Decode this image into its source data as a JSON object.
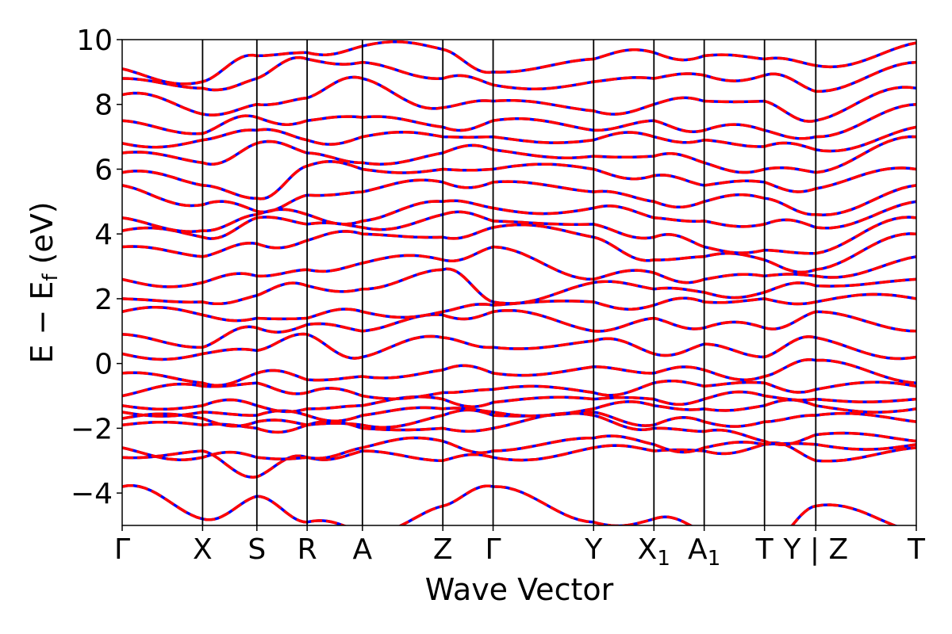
{
  "chart_data": {
    "type": "line",
    "xlabel": "Wave Vector",
    "ylabel": "E − E_f (eV)",
    "ylabel_parts": {
      "main": "E − E",
      "sub": "f",
      "unit": " (eV)"
    },
    "ylim": [
      -5,
      10
    ],
    "yticks": [
      -4,
      -2,
      0,
      2,
      4,
      6,
      8,
      10
    ],
    "ytick_labels": [
      "−4",
      "−2",
      "0",
      "2",
      "4",
      "6",
      "8",
      "10"
    ],
    "grid": false,
    "kpoints": [
      {
        "label": "Γ",
        "main": "Γ",
        "sub": "",
        "x": 0.0
      },
      {
        "label": "X",
        "main": "X",
        "sub": "",
        "x": 0.8
      },
      {
        "label": "S",
        "main": "S",
        "sub": "",
        "x": 1.34
      },
      {
        "label": "R",
        "main": "R",
        "sub": "",
        "x": 1.84
      },
      {
        "label": "A",
        "main": "A",
        "sub": "",
        "x": 2.39
      },
      {
        "label": "Z",
        "main": "Z",
        "sub": "",
        "x": 3.19
      },
      {
        "label": "Γ",
        "main": "Γ",
        "sub": "",
        "x": 3.69
      },
      {
        "label": "Y",
        "main": "Y",
        "sub": "",
        "x": 4.69
      },
      {
        "label": "X1",
        "main": "X",
        "sub": "1",
        "x": 5.29
      },
      {
        "label": "A1",
        "main": "A",
        "sub": "1",
        "x": 5.79
      },
      {
        "label": "T",
        "main": "T",
        "sub": "",
        "x": 6.39
      },
      {
        "label": "Y | Z",
        "main": "Y | Z",
        "sub": "",
        "x": 6.9
      },
      {
        "label": "T",
        "main": "T",
        "sub": "",
        "x": 7.9
      }
    ],
    "xlim": [
      0,
      7.9
    ],
    "series": [
      {
        "style": "solid",
        "color": "#0000ff"
      },
      {
        "style": "dashed",
        "color": "#ff0000"
      }
    ],
    "bands_at_kpoints": [
      [
        -3.8,
        -4.8,
        -4.1,
        -4.9,
        -5.2,
        -4.4,
        -3.8,
        -4.9,
        -4.8,
        -5.2,
        -5.6,
        -4.4,
        -5.2
      ],
      [
        -2.9,
        -2.7,
        -3.5,
        -2.9,
        -2.7,
        -3.0,
        -2.9,
        -2.6,
        -2.7,
        -2.7,
        -2.5,
        -3.0,
        -2.6
      ],
      [
        -2.6,
        -2.9,
        -2.9,
        -2.9,
        -2.6,
        -2.4,
        -2.7,
        -2.3,
        -2.5,
        -2.6,
        -2.5,
        -2.5,
        -2.5
      ],
      [
        -1.9,
        -1.9,
        -2.0,
        -1.9,
        -2.0,
        -2.0,
        -2.0,
        -1.6,
        -2.0,
        -2.1,
        -2.4,
        -2.2,
        -2.4
      ],
      [
        -1.7,
        -1.7,
        -1.8,
        -1.9,
        -1.9,
        -1.6,
        -1.6,
        -1.5,
        -1.9,
        -1.8,
        -1.8,
        -1.6,
        -1.8
      ],
      [
        -1.5,
        -1.5,
        -1.6,
        -1.6,
        -1.6,
        -1.4,
        -1.5,
        -1.4,
        -1.3,
        -1.4,
        -1.3,
        -1.3,
        -1.4
      ],
      [
        -1.3,
        -1.3,
        -1.3,
        -1.4,
        -1.3,
        -1.1,
        -1.2,
        -1.1,
        -1.1,
        -1.1,
        -1.0,
        -1.1,
        -1.1
      ],
      [
        -1.0,
        -0.7,
        -0.6,
        -0.9,
        -1.0,
        -0.9,
        -0.8,
        -0.9,
        -0.6,
        -0.7,
        -0.6,
        -0.8,
        -0.7
      ],
      [
        -0.3,
        -0.6,
        -0.3,
        -0.5,
        -0.4,
        -0.2,
        -0.3,
        -0.1,
        -0.3,
        -0.2,
        -0.4,
        0.1,
        -0.6
      ],
      [
        0.3,
        0.3,
        0.4,
        0.9,
        0.2,
        0.8,
        0.5,
        0.7,
        0.3,
        0.6,
        0.2,
        0.8,
        0.2
      ],
      [
        0.9,
        0.5,
        1.1,
        1.2,
        1.0,
        1.5,
        1.6,
        1.0,
        1.4,
        1.1,
        1.1,
        1.6,
        1.0
      ],
      [
        1.6,
        1.5,
        1.4,
        1.4,
        1.6,
        1.6,
        1.8,
        1.9,
        1.8,
        1.9,
        2.0,
        1.9,
        2.0
      ],
      [
        2.0,
        1.9,
        2.1,
        2.4,
        2.3,
        2.9,
        1.9,
        2.5,
        2.3,
        2.2,
        2.2,
        2.4,
        2.6
      ],
      [
        2.6,
        2.5,
        2.7,
        2.9,
        3.1,
        3.2,
        3.6,
        2.6,
        2.8,
        2.6,
        2.7,
        2.7,
        3.3
      ],
      [
        3.6,
        3.3,
        3.7,
        3.8,
        4.0,
        3.9,
        4.2,
        3.9,
        3.2,
        3.3,
        3.2,
        2.9,
        4.0
      ],
      [
        4.1,
        3.9,
        4.5,
        4.3,
        4.2,
        4.6,
        4.4,
        4.3,
        3.9,
        3.6,
        3.5,
        3.4,
        4.5
      ],
      [
        4.5,
        4.1,
        4.6,
        4.6,
        4.4,
        5.0,
        4.8,
        4.8,
        4.5,
        4.4,
        4.3,
        4.2,
        5.0
      ],
      [
        5.5,
        4.9,
        4.7,
        5.2,
        5.3,
        5.6,
        5.6,
        5.3,
        5.0,
        5.0,
        5.1,
        4.6,
        5.5
      ],
      [
        5.9,
        5.5,
        5.1,
        6.1,
        6.0,
        6.0,
        6.0,
        6.0,
        5.8,
        5.5,
        5.6,
        5.4,
        6.0
      ],
      [
        6.5,
        6.2,
        6.8,
        6.5,
        6.2,
        6.5,
        6.6,
        6.4,
        6.4,
        6.2,
        6.0,
        5.9,
        7.0
      ],
      [
        6.8,
        6.9,
        7.2,
        6.9,
        7.0,
        7.0,
        7.0,
        6.9,
        7.0,
        6.9,
        6.7,
        6.6,
        7.3
      ],
      [
        7.5,
        7.1,
        7.6,
        7.5,
        7.6,
        7.3,
        7.5,
        7.2,
        7.5,
        7.2,
        7.2,
        7.0,
        8.0
      ],
      [
        8.3,
        7.7,
        8.0,
        8.2,
        8.8,
        7.9,
        8.1,
        7.8,
        8.0,
        8.1,
        8.1,
        7.5,
        8.5
      ],
      [
        8.8,
        8.5,
        8.8,
        9.4,
        9.3,
        8.8,
        8.6,
        8.7,
        8.8,
        8.9,
        8.9,
        8.4,
        9.3
      ],
      [
        9.1,
        8.7,
        9.5,
        9.6,
        9.8,
        9.7,
        9.0,
        9.4,
        9.6,
        9.5,
        9.4,
        9.2,
        9.9
      ]
    ]
  }
}
